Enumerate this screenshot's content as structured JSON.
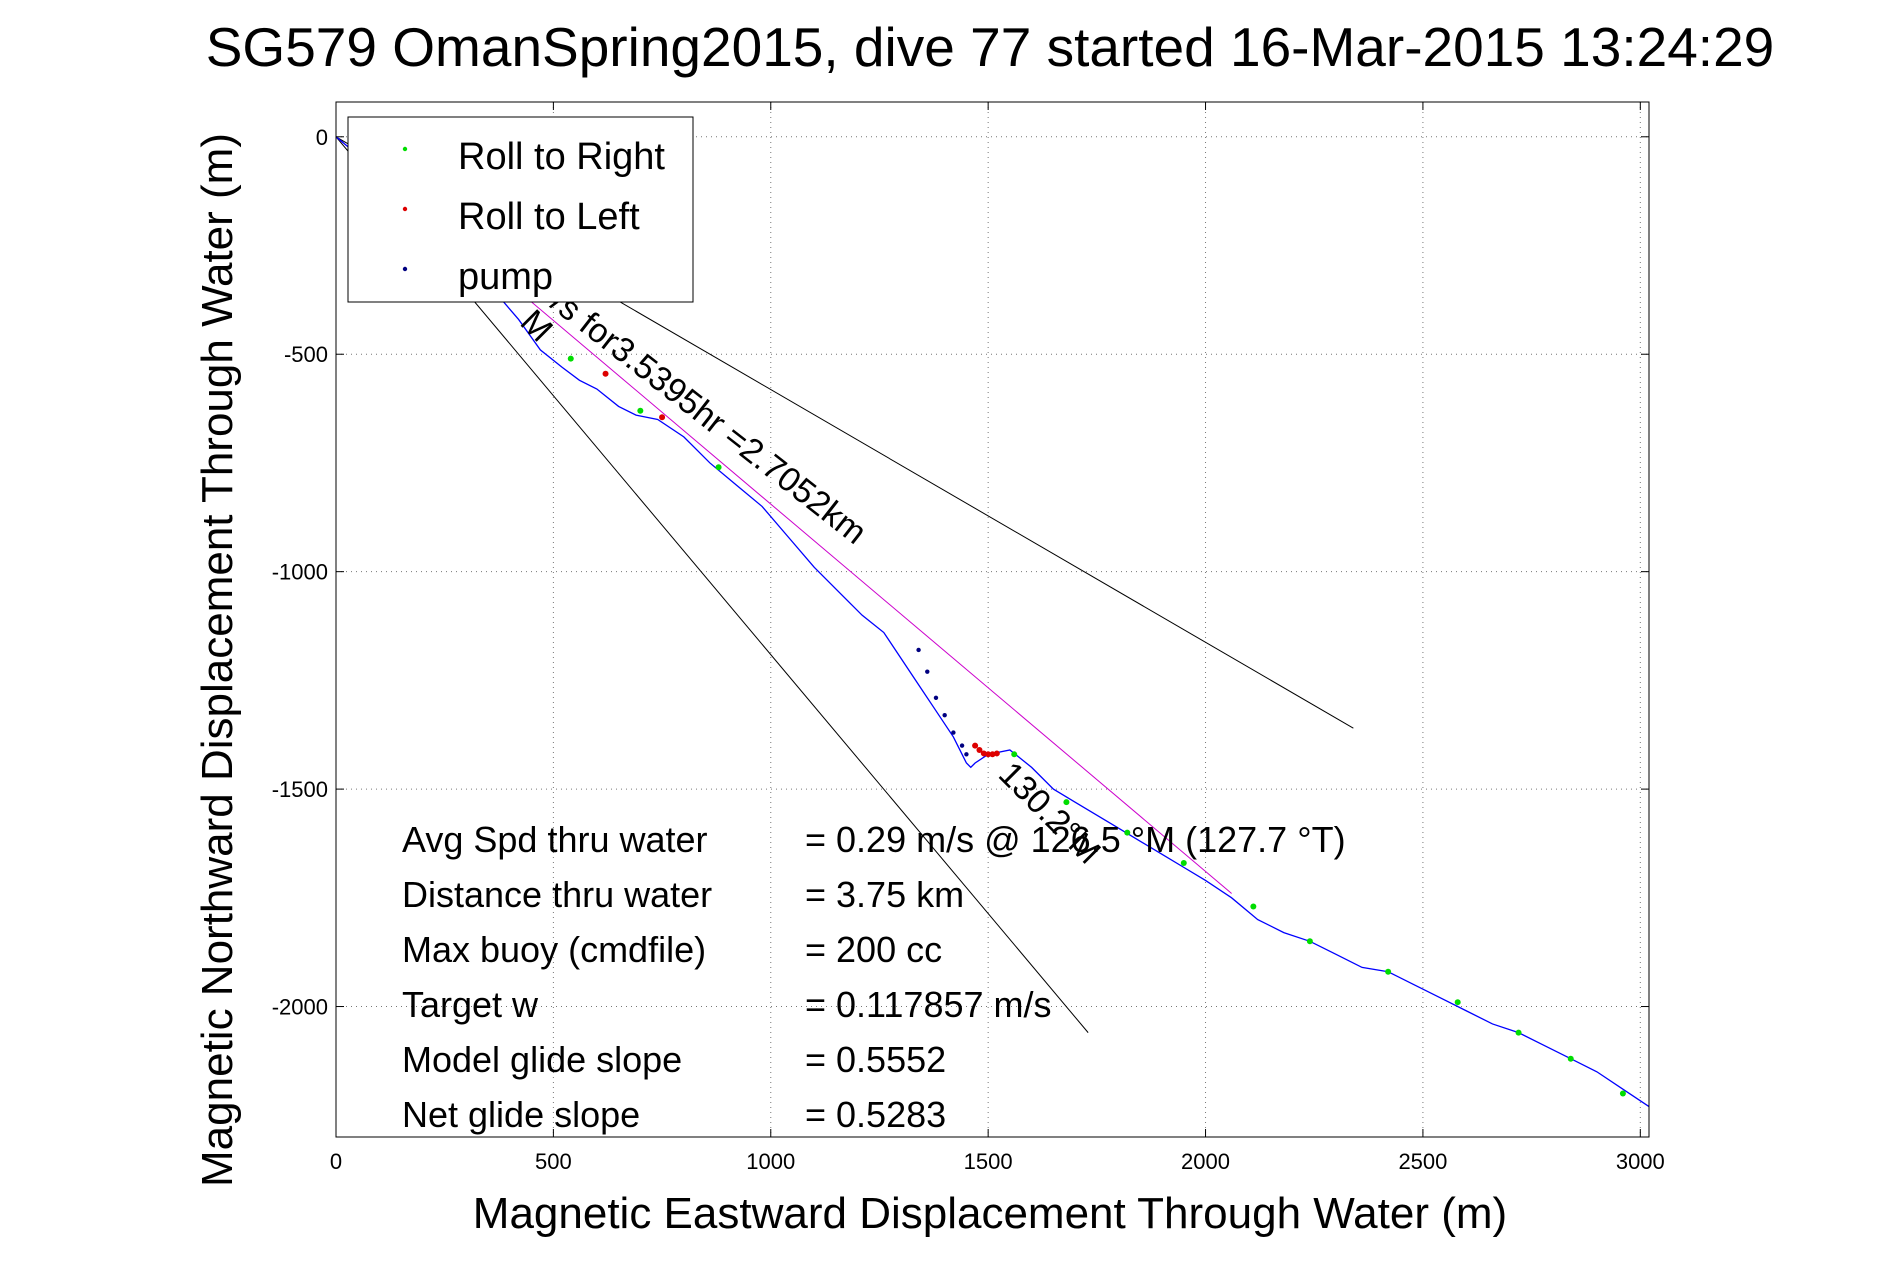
{
  "chart_data": {
    "type": "line",
    "title": "SG579 OmanSpring2015, dive 77 started 16-Mar-2015 13:24:29",
    "xlabel": "Magnetic Eastward Displacement Through Water (m)",
    "ylabel": "Magnetic Northward Displacement Through Water (m)",
    "xlim": [
      0,
      3020
    ],
    "ylim": [
      -2300,
      80
    ],
    "xticks": [
      0,
      500,
      1000,
      1500,
      2000,
      2500,
      3000
    ],
    "yticks": [
      0,
      -500,
      -1000,
      -1500,
      -2000
    ],
    "grid": true,
    "legend": {
      "placement": "top-left",
      "entries": [
        {
          "name": "Roll to Right",
          "color": "#00dd00"
        },
        {
          "name": "Roll to Left",
          "color": "#dd0000"
        },
        {
          "name": "pump",
          "color": "#000080"
        }
      ]
    },
    "track": {
      "color": "#0000ff",
      "x": [
        0,
        60,
        130,
        200,
        280,
        360,
        420,
        470,
        520,
        560,
        600,
        650,
        690,
        740,
        800,
        860,
        920,
        980,
        1040,
        1100,
        1160,
        1210,
        1260,
        1300,
        1340,
        1380,
        1420,
        1440,
        1450,
        1460,
        1470,
        1500,
        1550,
        1600,
        1650,
        1700,
        1750,
        1800,
        1850,
        1900,
        1950,
        2000,
        2060,
        2120,
        2180,
        2240,
        2300,
        2360,
        2420,
        2480,
        2540,
        2600,
        2660,
        2720,
        2780,
        2840,
        2900,
        2960,
        3020
      ],
      "y": [
        0,
        -50,
        -120,
        -200,
        -280,
        -350,
        -420,
        -490,
        -530,
        -560,
        -580,
        -620,
        -640,
        -650,
        -690,
        -750,
        -800,
        -850,
        -920,
        -990,
        -1050,
        -1100,
        -1140,
        -1200,
        -1260,
        -1320,
        -1380,
        -1420,
        -1440,
        -1450,
        -1440,
        -1420,
        -1410,
        -1450,
        -1500,
        -1530,
        -1560,
        -1590,
        -1620,
        -1650,
        -1680,
        -1710,
        -1750,
        -1800,
        -1830,
        -1850,
        -1880,
        -1910,
        -1920,
        -1950,
        -1980,
        -2010,
        -2040,
        -2060,
        -2090,
        -2120,
        -2150,
        -2190,
        -2230
      ]
    },
    "roll_right": {
      "color": "#00dd00",
      "x": [
        540,
        700,
        880,
        1560,
        1680,
        1820,
        1950,
        2110,
        2240,
        2420,
        2580,
        2720,
        2840,
        2960
      ],
      "y": [
        -510,
        -630,
        -760,
        -1420,
        -1530,
        -1600,
        -1670,
        -1770,
        -1850,
        -1920,
        -1990,
        -2060,
        -2120,
        -2200
      ]
    },
    "roll_left": {
      "color": "#dd0000",
      "x": [
        620,
        750,
        1470,
        1480,
        1490,
        1500,
        1510,
        1520
      ],
      "y": [
        -545,
        -645,
        -1400,
        -1410,
        -1418,
        -1420,
        -1420,
        -1418
      ]
    },
    "pump": {
      "color": "#000080",
      "x": [
        1340,
        1360,
        1380,
        1400,
        1420,
        1440,
        1450
      ],
      "y": [
        -1180,
        -1230,
        -1290,
        -1330,
        -1370,
        -1400,
        -1420
      ]
    },
    "reference_lines": [
      {
        "from": [
          0,
          0
        ],
        "to": [
          2340,
          -1360
        ],
        "color": "#000000"
      },
      {
        "from": [
          0,
          0
        ],
        "to": [
          1730,
          -2060
        ],
        "color": "#000000"
      },
      {
        "from": [
          0,
          0
        ],
        "to": [
          2060,
          -1740
        ],
        "color": "#cc00cc"
      }
    ],
    "annotations": [
      {
        "text": "M",
        "x": 420,
        "y": -430,
        "rotate": 45
      },
      {
        "text": "/s for3.5395hr =2.7052km",
        "x": 490,
        "y": -390,
        "rotate": 38
      },
      {
        "text": "130.2°M",
        "x": 1520,
        "y": -1470,
        "rotate": 45
      }
    ],
    "stats": [
      {
        "label": "Avg Spd thru water",
        "value": "=  0.29 m/s @ 126.5 °M (127.7 °T)"
      },
      {
        "label": "Distance thru water",
        "value": "=  3.75 km"
      },
      {
        "label": "Max buoy (cmdfile)",
        "value": "= 200 cc"
      },
      {
        "label": "Target w",
        "value": "= 0.117857 m/s"
      },
      {
        "label": "Model glide slope",
        "value": "= 0.5552"
      },
      {
        "label": "Net glide slope",
        "value": "= 0.5283"
      }
    ]
  }
}
